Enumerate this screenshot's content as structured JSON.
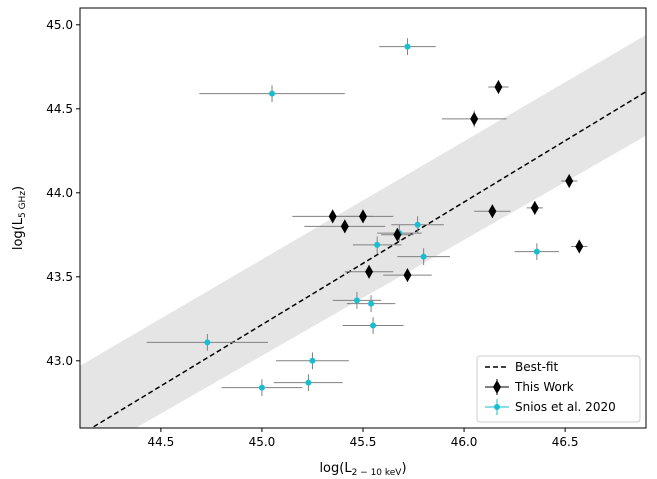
{
  "chart_data": {
    "type": "scatter",
    "title": "",
    "xlabel": "log(L",
    "xlabel_sub": "2 − 10 keV",
    "xlabel_close": ")",
    "ylabel": "log(L",
    "ylabel_sub": "5 GHz",
    "ylabel_close": ")",
    "xlim": [
      44.1,
      46.9
    ],
    "ylim": [
      42.6,
      45.1
    ],
    "xticks": [
      44.5,
      45.0,
      45.5,
      46.0,
      46.5
    ],
    "yticks": [
      43.0,
      43.5,
      44.0,
      44.5,
      45.0
    ],
    "xtick_labels": [
      "44.5",
      "45.0",
      "45.5",
      "46.0",
      "46.5"
    ],
    "ytick_labels": [
      "43.0",
      "43.5",
      "44.0",
      "44.5",
      "45.0"
    ],
    "grid": false,
    "legend_position": "bottom-right",
    "fit": {
      "name": "Best-fit",
      "slope": 0.73,
      "intercept_at": 45.5,
      "value_at": 43.58,
      "band_at_xmin": [
        42.41,
        42.97
      ],
      "band_at_xmax": [
        44.34,
        44.94
      ],
      "color": "#000000",
      "band_color": "#e5e5e5"
    },
    "series": [
      {
        "name": "This Work",
        "marker": "diamond",
        "color": "#000000",
        "points": [
          {
            "x": 46.17,
            "y": 44.63,
            "xerr": 0.05,
            "yerr": 0.04
          },
          {
            "x": 46.05,
            "y": 44.44,
            "xerr": 0.16,
            "yerr": 0.05
          },
          {
            "x": 46.52,
            "y": 44.07,
            "xerr": 0.04,
            "yerr": 0.04
          },
          {
            "x": 46.35,
            "y": 43.91,
            "xerr": 0.04,
            "yerr": 0.04
          },
          {
            "x": 46.14,
            "y": 43.89,
            "xerr": 0.09,
            "yerr": 0.04
          },
          {
            "x": 45.35,
            "y": 43.86,
            "xerr": 0.2,
            "yerr": 0.04
          },
          {
            "x": 45.5,
            "y": 43.86,
            "xerr": 0.15,
            "yerr": 0.04
          },
          {
            "x": 45.41,
            "y": 43.8,
            "xerr": 0.2,
            "yerr": 0.04
          },
          {
            "x": 45.67,
            "y": 43.75,
            "xerr": 0.08,
            "yerr": 0.04
          },
          {
            "x": 46.57,
            "y": 43.68,
            "xerr": 0.04,
            "yerr": 0.04
          },
          {
            "x": 45.53,
            "y": 43.53,
            "xerr": 0.12,
            "yerr": 0.04
          },
          {
            "x": 45.72,
            "y": 43.51,
            "xerr": 0.12,
            "yerr": 0.04
          }
        ]
      },
      {
        "name": "Snios et al. 2020",
        "marker": "circle",
        "color": "#17becf",
        "points": [
          {
            "x": 45.72,
            "y": 44.87,
            "xerr": 0.14,
            "yerr": 0.05
          },
          {
            "x": 45.05,
            "y": 44.59,
            "xerr": 0.36,
            "yerr": 0.05
          },
          {
            "x": 45.77,
            "y": 43.81,
            "xerr": 0.13,
            "yerr": 0.05
          },
          {
            "x": 45.68,
            "y": 43.76,
            "xerr": 0.11,
            "yerr": 0.05
          },
          {
            "x": 45.57,
            "y": 43.69,
            "xerr": 0.12,
            "yerr": 0.05
          },
          {
            "x": 45.8,
            "y": 43.62,
            "xerr": 0.13,
            "yerr": 0.05
          },
          {
            "x": 46.36,
            "y": 43.65,
            "xerr": 0.11,
            "yerr": 0.05
          },
          {
            "x": 45.47,
            "y": 43.36,
            "xerr": 0.12,
            "yerr": 0.05
          },
          {
            "x": 45.54,
            "y": 43.34,
            "xerr": 0.12,
            "yerr": 0.05
          },
          {
            "x": 45.55,
            "y": 43.21,
            "xerr": 0.15,
            "yerr": 0.05
          },
          {
            "x": 44.73,
            "y": 43.11,
            "xerr": 0.3,
            "yerr": 0.05
          },
          {
            "x": 45.25,
            "y": 43.0,
            "xerr": 0.18,
            "yerr": 0.05
          },
          {
            "x": 45.23,
            "y": 42.87,
            "xerr": 0.17,
            "yerr": 0.05
          },
          {
            "x": 45.0,
            "y": 42.84,
            "xerr": 0.2,
            "yerr": 0.05
          }
        ]
      }
    ]
  }
}
